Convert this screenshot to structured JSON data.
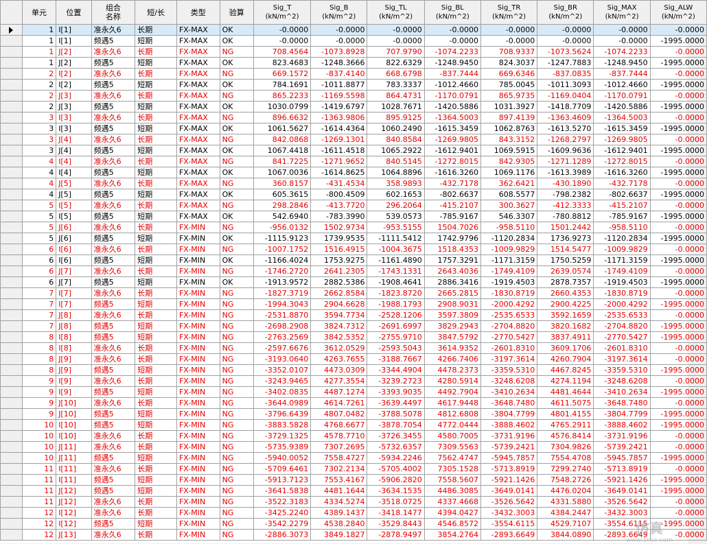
{
  "headers": {
    "unit": "单元",
    "pos": "位置",
    "combo_line1": "组合",
    "combo_line2": "名称",
    "term": "短/长",
    "type": "类型",
    "check": "验算",
    "sig_t": [
      "Sig_T",
      "(kN/m^2)"
    ],
    "sig_b": [
      "Sig_B",
      "(kN/m^2)"
    ],
    "sig_tl": [
      "Sig_TL",
      "(kN/m^2)"
    ],
    "sig_bl": [
      "Sig_BL",
      "(kN/m^2)"
    ],
    "sig_tr": [
      "Sig_TR",
      "(kN/m^2)"
    ],
    "sig_br": [
      "Sig_BR",
      "(kN/m^2)"
    ],
    "sig_max": [
      "Sig_MAX",
      "(kN/m^2)"
    ],
    "sig_alw": [
      "Sig_ALW",
      "(kN/m^2)"
    ]
  },
  "rows": [
    [
      "1",
      "I[1]",
      "准永久6",
      "长期",
      "FX-MAX",
      "OK",
      "-0.0000",
      "-0.0000",
      "-0.0000",
      "-0.0000",
      "-0.0000",
      "-0.0000",
      "-0.0000",
      "-0.0000"
    ],
    [
      "1",
      "I[1]",
      "频遇5",
      "短期",
      "FX-MAX",
      "OK",
      "-0.0000",
      "-0.0000",
      "-0.0000",
      "-0.0000",
      "-0.0000",
      "-0.0000",
      "-0.0000",
      "-1995.0000"
    ],
    [
      "1",
      "J[2]",
      "准永久6",
      "长期",
      "FX-MAX",
      "NG",
      "708.4564",
      "-1073.8928",
      "707.9790",
      "-1074.2233",
      "708.9337",
      "-1073.5624",
      "-1074.2233",
      "-0.0000"
    ],
    [
      "1",
      "J[2]",
      "频遇5",
      "短期",
      "FX-MAX",
      "OK",
      "823.4683",
      "-1248.3666",
      "822.6329",
      "-1248.9450",
      "824.3037",
      "-1247.7883",
      "-1248.9450",
      "-1995.0000"
    ],
    [
      "2",
      "I[2]",
      "准永久6",
      "长期",
      "FX-MAX",
      "NG",
      "669.1572",
      "-837.4140",
      "668.6798",
      "-837.7444",
      "669.6346",
      "-837.0835",
      "-837.7444",
      "-0.0000"
    ],
    [
      "2",
      "I[2]",
      "频遇5",
      "短期",
      "FX-MAX",
      "OK",
      "784.1691",
      "-1011.8877",
      "783.3337",
      "-1012.4660",
      "785.0045",
      "-1011.3093",
      "-1012.4660",
      "-1995.0000"
    ],
    [
      "2",
      "J[3]",
      "准永久6",
      "长期",
      "FX-MAX",
      "NG",
      "865.2233",
      "-1169.5598",
      "864.4731",
      "-1170.0791",
      "865.9735",
      "-1169.0404",
      "-1170.0791",
      "-0.0000"
    ],
    [
      "2",
      "J[3]",
      "频遇5",
      "短期",
      "FX-MAX",
      "OK",
      "1030.0799",
      "-1419.6797",
      "1028.7671",
      "-1420.5886",
      "1031.3927",
      "-1418.7709",
      "-1420.5886",
      "-1995.0000"
    ],
    [
      "3",
      "I[3]",
      "准永久6",
      "长期",
      "FX-MAX",
      "NG",
      "896.6632",
      "-1363.9806",
      "895.9125",
      "-1364.5003",
      "897.4139",
      "-1363.4609",
      "-1364.5003",
      "-0.0000"
    ],
    [
      "3",
      "I[3]",
      "频遇5",
      "短期",
      "FX-MAX",
      "OK",
      "1061.5627",
      "-1614.4364",
      "1060.2490",
      "-1615.3459",
      "1062.8763",
      "-1613.5270",
      "-1615.3459",
      "-1995.0000"
    ],
    [
      "3",
      "J[4]",
      "准永久6",
      "长期",
      "FX-MAX",
      "NG",
      "842.0868",
      "-1269.1301",
      "840.8584",
      "-1269.9805",
      "843.3152",
      "-1268.2797",
      "-1269.9805",
      "-0.0000"
    ],
    [
      "3",
      "J[4]",
      "频遇5",
      "短期",
      "FX-MAX",
      "OK",
      "1067.4418",
      "-1611.4518",
      "1065.2922",
      "-1612.9401",
      "1069.5915",
      "-1609.9636",
      "-1612.9401",
      "-1995.0000"
    ],
    [
      "4",
      "I[4]",
      "准永久6",
      "长期",
      "FX-MAX",
      "NG",
      "841.7225",
      "-1271.9652",
      "840.5145",
      "-1272.8015",
      "842.9305",
      "-1271.1289",
      "-1272.8015",
      "-0.0000"
    ],
    [
      "4",
      "I[4]",
      "频遇5",
      "短期",
      "FX-MAX",
      "OK",
      "1067.0036",
      "-1614.8625",
      "1064.8896",
      "-1616.3260",
      "1069.1176",
      "-1613.3989",
      "-1616.3260",
      "-1995.0000"
    ],
    [
      "4",
      "J[5]",
      "准永久6",
      "长期",
      "FX-MAX",
      "NG",
      "360.8157",
      "-431.4534",
      "358.9893",
      "-432.7178",
      "362.6421",
      "-430.1890",
      "-432.7178",
      "-0.0000"
    ],
    [
      "4",
      "J[5]",
      "频遇5",
      "短期",
      "FX-MAX",
      "OK",
      "605.3615",
      "-800.4509",
      "602.1653",
      "-802.6637",
      "608.5577",
      "-798.2382",
      "-802.6637",
      "-1995.0000"
    ],
    [
      "5",
      "I[5]",
      "准永久6",
      "长期",
      "FX-MAX",
      "NG",
      "298.2846",
      "-413.7720",
      "296.2064",
      "-415.2107",
      "300.3627",
      "-412.3333",
      "-415.2107",
      "-0.0000"
    ],
    [
      "5",
      "I[5]",
      "频遇5",
      "短期",
      "FX-MAX",
      "OK",
      "542.6940",
      "-783.3990",
      "539.0573",
      "-785.9167",
      "546.3307",
      "-780.8812",
      "-785.9167",
      "-1995.0000"
    ],
    [
      "5",
      "J[6]",
      "准永久6",
      "长期",
      "FX-MIN",
      "NG",
      "-956.0132",
      "1502.9734",
      "-953.5155",
      "1504.7026",
      "-958.5110",
      "1501.2442",
      "-958.5110",
      "-0.0000"
    ],
    [
      "5",
      "J[6]",
      "频遇5",
      "短期",
      "FX-MIN",
      "OK",
      "-1115.9123",
      "1739.9535",
      "-1111.5412",
      "1742.9796",
      "-1120.2834",
      "1736.9273",
      "-1120.2834",
      "-1995.0000"
    ],
    [
      "6",
      "I[6]",
      "准永久6",
      "长期",
      "FX-MIN",
      "NG",
      "-1007.1752",
      "1516.4915",
      "-1004.3675",
      "1518.4353",
      "-1009.9829",
      "1514.5477",
      "-1009.9829",
      "-0.0000"
    ],
    [
      "6",
      "I[6]",
      "频遇5",
      "短期",
      "FX-MIN",
      "OK",
      "-1166.4024",
      "1753.9275",
      "-1161.4890",
      "1757.3291",
      "-1171.3159",
      "1750.5259",
      "-1171.3159",
      "-1995.0000"
    ],
    [
      "6",
      "J[7]",
      "准永久6",
      "长期",
      "FX-MIN",
      "NG",
      "-1746.2720",
      "2641.2305",
      "-1743.1331",
      "2643.4036",
      "-1749.4109",
      "2639.0574",
      "-1749.4109",
      "-0.0000"
    ],
    [
      "6",
      "J[7]",
      "频遇5",
      "短期",
      "FX-MIN",
      "OK",
      "-1913.9572",
      "2882.5386",
      "-1908.4641",
      "2886.3416",
      "-1919.4503",
      "2878.7357",
      "-1919.4503",
      "-1995.0000"
    ],
    [
      "7",
      "I[7]",
      "准永久6",
      "长期",
      "FX-MIN",
      "NG",
      "-1827.3719",
      "2662.8584",
      "-1823.8720",
      "2665.2815",
      "-1830.8719",
      "2660.4353",
      "-1830.8719",
      "-0.0000"
    ],
    [
      "7",
      "I[7]",
      "频遇5",
      "短期",
      "FX-MIN",
      "NG",
      "-1994.3043",
      "2904.6628",
      "-1988.1793",
      "2908.9031",
      "-2000.4292",
      "2900.4225",
      "-2000.4292",
      "-1995.0000"
    ],
    [
      "7",
      "J[8]",
      "准永久6",
      "长期",
      "FX-MIN",
      "NG",
      "-2531.8870",
      "3594.7734",
      "-2528.1206",
      "3597.3809",
      "-2535.6533",
      "3592.1659",
      "-2535.6533",
      "-0.0000"
    ],
    [
      "7",
      "J[8]",
      "频遇5",
      "短期",
      "FX-MIN",
      "NG",
      "-2698.2908",
      "3824.7312",
      "-2691.6997",
      "3829.2943",
      "-2704.8820",
      "3820.1682",
      "-2704.8820",
      "-1995.0000"
    ],
    [
      "8",
      "I[8]",
      "频遇5",
      "短期",
      "FX-MIN",
      "NG",
      "-2763.2569",
      "3842.5352",
      "-2755.9710",
      "3847.5792",
      "-2770.5427",
      "3837.4911",
      "-2770.5427",
      "-1995.0000"
    ],
    [
      "8",
      "I[8]",
      "准永久6",
      "长期",
      "FX-MIN",
      "NG",
      "-2597.6676",
      "3612.0529",
      "-2593.5043",
      "3614.9352",
      "-2601.8310",
      "3609.1706",
      "-2601.8310",
      "-0.0000"
    ],
    [
      "8",
      "J[9]",
      "准永久6",
      "长期",
      "FX-MIN",
      "NG",
      "-3193.0640",
      "4263.7655",
      "-3188.7667",
      "4266.7406",
      "-3197.3614",
      "4260.7904",
      "-3197.3614",
      "-0.0000"
    ],
    [
      "8",
      "J[9]",
      "频遇5",
      "短期",
      "FX-MIN",
      "NG",
      "-3352.0107",
      "4473.0309",
      "-3344.4904",
      "4478.2373",
      "-3359.5310",
      "4467.8245",
      "-3359.5310",
      "-1995.0000"
    ],
    [
      "9",
      "I[9]",
      "准永久6",
      "长期",
      "FX-MIN",
      "NG",
      "-3243.9465",
      "4277.3554",
      "-3239.2723",
      "4280.5914",
      "-3248.6208",
      "4274.1194",
      "-3248.6208",
      "-0.0000"
    ],
    [
      "9",
      "I[9]",
      "频遇5",
      "短期",
      "FX-MIN",
      "NG",
      "-3402.0835",
      "4487.1274",
      "-3393.9035",
      "4492.7904",
      "-3410.2634",
      "4481.4644",
      "-3410.2634",
      "-1995.0000"
    ],
    [
      "9",
      "J[10]",
      "准永久6",
      "长期",
      "FX-MIN",
      "NG",
      "-3644.0989",
      "4614.7261",
      "-3639.4497",
      "4617.9448",
      "-3648.7480",
      "4611.5075",
      "-3648.7480",
      "-0.0000"
    ],
    [
      "9",
      "J[10]",
      "频遇5",
      "短期",
      "FX-MIN",
      "NG",
      "-3796.6439",
      "4807.0482",
      "-3788.5078",
      "4812.6808",
      "-3804.7799",
      "4801.4155",
      "-3804.7799",
      "-1995.0000"
    ],
    [
      "10",
      "I[10]",
      "频遇5",
      "短期",
      "FX-MIN",
      "NG",
      "-3883.5828",
      "4768.6677",
      "-3878.7054",
      "4772.0444",
      "-3888.4602",
      "4765.2911",
      "-3888.4602",
      "-1995.0000"
    ],
    [
      "10",
      "I[10]",
      "准永久6",
      "长期",
      "FX-MIN",
      "NG",
      "-3729.1325",
      "4578.7710",
      "-3726.3455",
      "4580.7005",
      "-3731.9196",
      "4576.8414",
      "-3731.9196",
      "-0.0000"
    ],
    [
      "10",
      "J[11]",
      "准永久6",
      "长期",
      "FX-MIN",
      "NG",
      "-5735.9389",
      "7307.2695",
      "-5732.6357",
      "7309.5563",
      "-5739.2421",
      "7304.9826",
      "-5739.2421",
      "-0.0000"
    ],
    [
      "10",
      "J[11]",
      "频遇5",
      "短期",
      "FX-MIN",
      "NG",
      "-5940.0052",
      "7558.4727",
      "-5934.2246",
      "7562.4747",
      "-5945.7857",
      "7554.4708",
      "-5945.7857",
      "-1995.0000"
    ],
    [
      "11",
      "I[11]",
      "准永久6",
      "长期",
      "FX-MIN",
      "NG",
      "-5709.6461",
      "7302.2134",
      "-5705.4002",
      "7305.1528",
      "-5713.8919",
      "7299.2740",
      "-5713.8919",
      "-0.0000"
    ],
    [
      "11",
      "I[11]",
      "频遇5",
      "短期",
      "FX-MIN",
      "NG",
      "-5913.7123",
      "7553.4167",
      "-5906.2820",
      "7558.5607",
      "-5921.1426",
      "7548.2726",
      "-5921.1426",
      "-1995.0000"
    ],
    [
      "11",
      "J[12]",
      "频遇5",
      "短期",
      "FX-MIN",
      "NG",
      "-3641.5838",
      "4481.1644",
      "-3634.1535",
      "4486.3085",
      "-3649.0141",
      "4476.0204",
      "-3649.0141",
      "-1995.0000"
    ],
    [
      "11",
      "J[12]",
      "准永久6",
      "长期",
      "FX-MIN",
      "NG",
      "-3522.3183",
      "4334.5274",
      "-3518.0725",
      "4337.4668",
      "-3526.5642",
      "4331.5880",
      "-3526.5642",
      "-0.0000"
    ],
    [
      "12",
      "I[12]",
      "准永久6",
      "长期",
      "FX-MIN",
      "NG",
      "-3425.2240",
      "4389.1437",
      "-3418.1477",
      "4394.0427",
      "-3432.3003",
      "4384.2447",
      "-3432.3003",
      "-0.0000"
    ],
    [
      "12",
      "I[12]",
      "频遇5",
      "短期",
      "FX-MIN",
      "NG",
      "-3542.2279",
      "4538.2840",
      "-3529.8443",
      "4546.8572",
      "-3554.6115",
      "4529.7107",
      "-3554.6115",
      "-1995.0000"
    ],
    [
      "12",
      "J[13]",
      "准永久6",
      "长期",
      "FX-MIN",
      "NG",
      "-2886.3073",
      "3849.1827",
      "-2878.9497",
      "3854.2764",
      "-2893.6649",
      "3844.0890",
      "-2893.6649",
      "-0.0000"
    ]
  ],
  "colors": {
    "ng_text": "#e60000",
    "ok_text": "#000000",
    "selected_bg": "#d8eaf8",
    "header_bg": "#f0f0f0"
  },
  "selected_row_index": 0,
  "row_header_indicator": "arrow-right-icon"
}
